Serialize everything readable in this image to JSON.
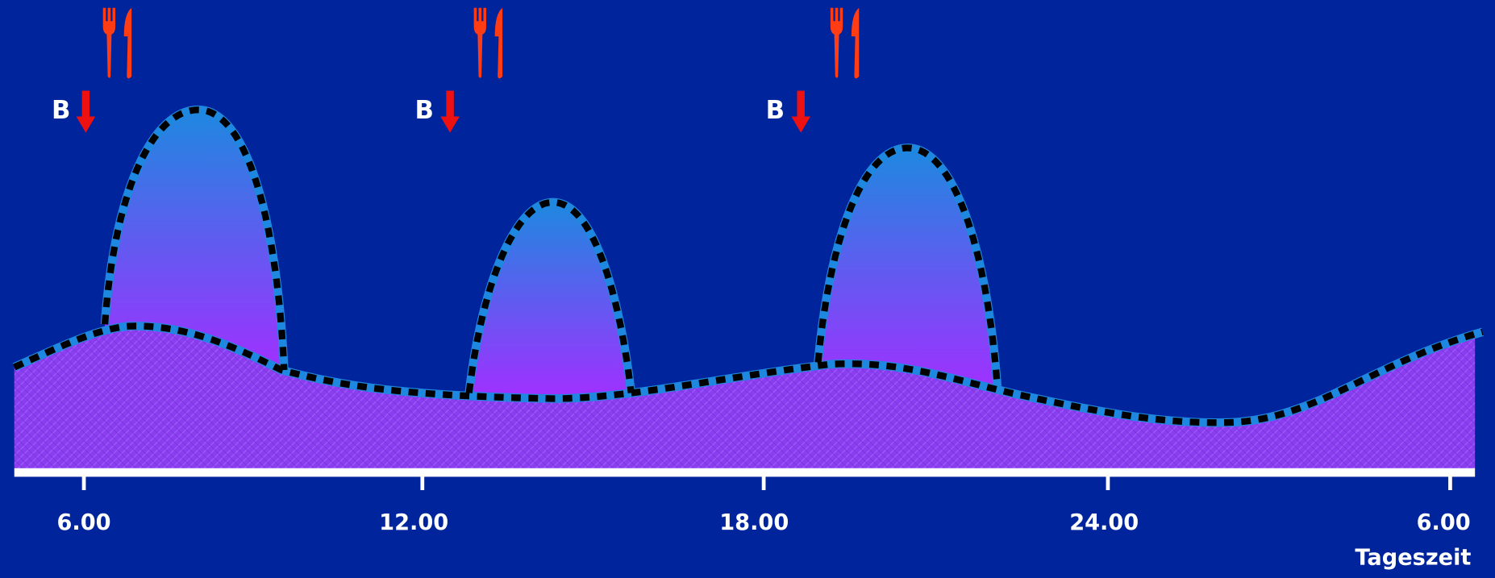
{
  "markers": [
    {
      "label": "B"
    },
    {
      "label": "B"
    },
    {
      "label": "B"
    }
  ],
  "x_axis": {
    "ticks": [
      "6.00",
      "12.00",
      "18.00",
      "24.00",
      "6.00"
    ],
    "label": "Tageszeit"
  }
}
